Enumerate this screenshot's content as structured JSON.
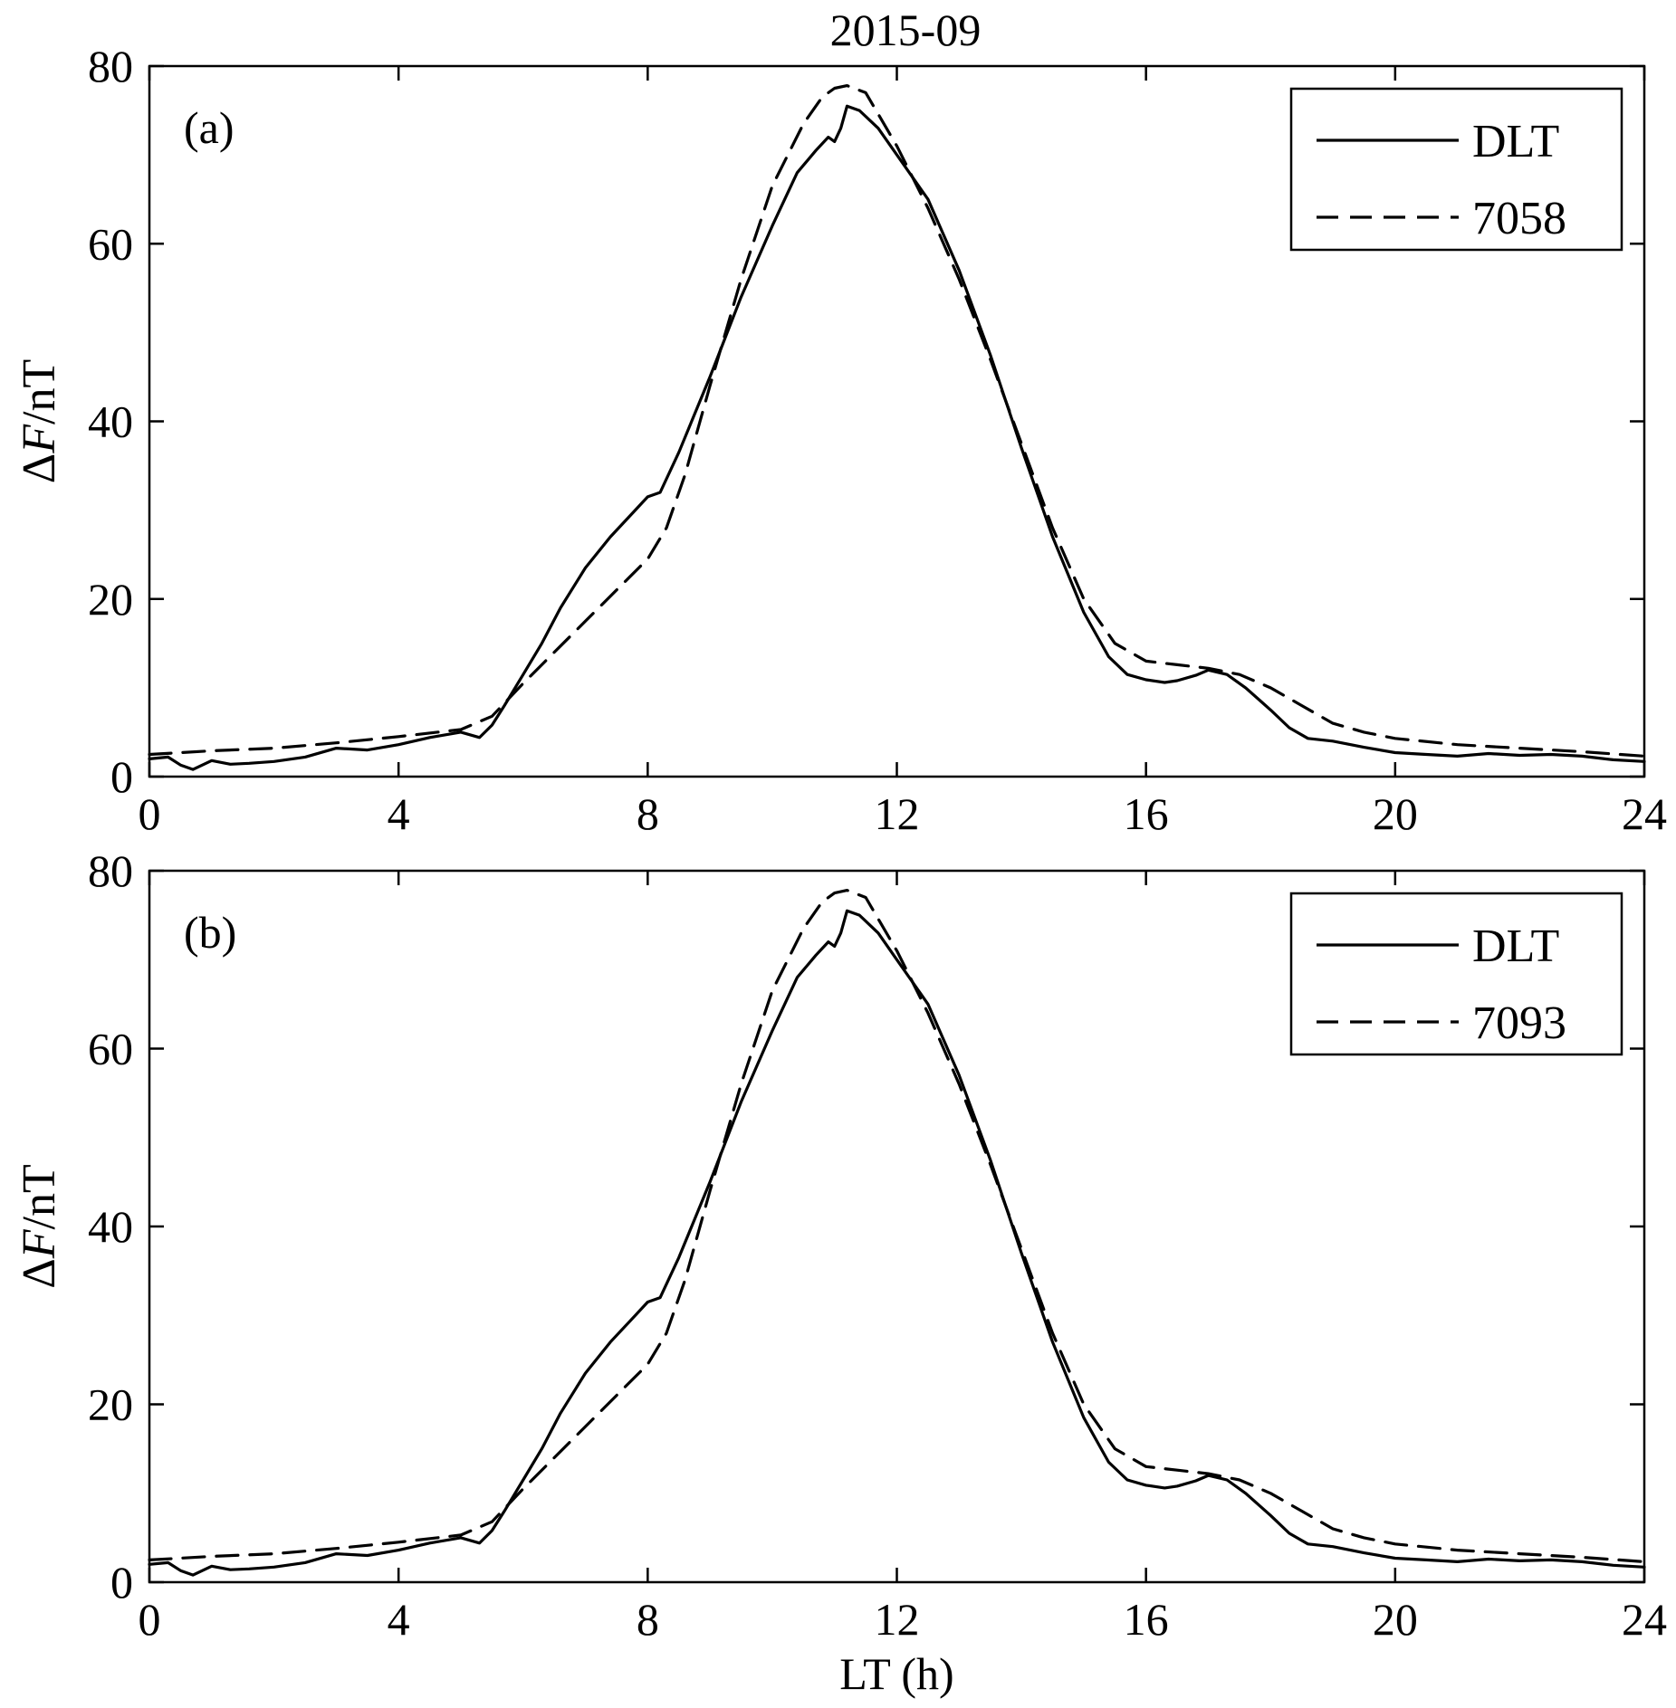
{
  "figure_title": "2015-09",
  "chart_data": [
    {
      "type": "line",
      "panel_label": "(a)",
      "title": "2015-09",
      "xlabel": "",
      "ylabel": "ΔF/nT",
      "ylabel_prefix": "Δ",
      "ylabel_var": "F",
      "ylabel_unit": "/nT",
      "xlim": [
        0,
        24
      ],
      "ylim": [
        0,
        80
      ],
      "xticks": [
        0,
        4,
        8,
        12,
        16,
        20,
        24
      ],
      "yticks": [
        0,
        20,
        40,
        60,
        80
      ],
      "legend_position": "top-right",
      "series": [
        {
          "name": "DLT",
          "style": "solid",
          "x": [
            0,
            0.3,
            0.5,
            0.7,
            1.0,
            1.3,
            1.6,
            2.0,
            2.5,
            3.0,
            3.5,
            4.0,
            4.5,
            5.0,
            5.3,
            5.5,
            5.7,
            6.0,
            6.3,
            6.6,
            7.0,
            7.4,
            7.8,
            8.0,
            8.2,
            8.5,
            9.0,
            9.5,
            10.0,
            10.4,
            10.7,
            10.9,
            11.0,
            11.1,
            11.2,
            11.4,
            11.7,
            12.0,
            12.5,
            13.0,
            13.5,
            14.0,
            14.5,
            15.0,
            15.4,
            15.7,
            16.0,
            16.3,
            16.5,
            16.8,
            17.0,
            17.3,
            17.6,
            18.0,
            18.3,
            18.6,
            19.0,
            19.5,
            20.0,
            20.5,
            21.0,
            21.5,
            22.0,
            22.5,
            23.0,
            23.5,
            24.0
          ],
          "values": [
            2.0,
            2.2,
            1.3,
            0.8,
            1.8,
            1.4,
            1.5,
            1.7,
            2.2,
            3.2,
            3.0,
            3.6,
            4.4,
            5.0,
            4.4,
            5.8,
            8.0,
            11.5,
            15.0,
            19.0,
            23.5,
            27.0,
            30.0,
            31.5,
            32.0,
            36.5,
            45.0,
            54.0,
            62.0,
            68.0,
            70.5,
            72.0,
            71.5,
            73.0,
            75.5,
            75.0,
            73.0,
            70.0,
            65.0,
            57.0,
            47.5,
            37.0,
            27.0,
            18.5,
            13.5,
            11.5,
            10.9,
            10.6,
            10.8,
            11.4,
            12.0,
            11.5,
            10.0,
            7.5,
            5.5,
            4.3,
            4.0,
            3.3,
            2.7,
            2.5,
            2.3,
            2.6,
            2.4,
            2.5,
            2.3,
            1.9,
            1.7
          ]
        },
        {
          "name": "7058",
          "style": "dashed",
          "x": [
            0,
            1,
            2,
            3,
            4,
            5,
            5.5,
            6.0,
            6.5,
            7.0,
            7.5,
            8.0,
            8.3,
            8.6,
            9.0,
            9.5,
            10.0,
            10.5,
            10.8,
            11.0,
            11.2,
            11.5,
            12.0,
            12.5,
            13.0,
            13.5,
            14.0,
            14.5,
            15.0,
            15.5,
            16.0,
            16.5,
            17.0,
            17.5,
            18.0,
            18.5,
            19.0,
            19.5,
            20.0,
            21.0,
            22.0,
            23.0,
            24.0
          ],
          "values": [
            2.5,
            2.9,
            3.2,
            3.8,
            4.5,
            5.3,
            6.8,
            10.5,
            14.0,
            17.5,
            21.0,
            24.5,
            28.0,
            34.0,
            44.0,
            56.0,
            66.5,
            73.5,
            76.5,
            77.5,
            77.8,
            77.0,
            71.0,
            64.0,
            56.0,
            47.0,
            37.5,
            28.0,
            20.0,
            15.0,
            13.0,
            12.6,
            12.2,
            11.5,
            10.0,
            8.0,
            6.0,
            5.0,
            4.3,
            3.6,
            3.2,
            2.8,
            2.3
          ]
        }
      ]
    },
    {
      "type": "line",
      "panel_label": "(b)",
      "title": "",
      "xlabel": "LT (h)",
      "ylabel": "ΔF/nT",
      "ylabel_prefix": "Δ",
      "ylabel_var": "F",
      "ylabel_unit": "/nT",
      "xlim": [
        0,
        24
      ],
      "ylim": [
        0,
        80
      ],
      "xticks": [
        0,
        4,
        8,
        12,
        16,
        20,
        24
      ],
      "yticks": [
        0,
        20,
        40,
        60,
        80
      ],
      "legend_position": "top-right",
      "series": [
        {
          "name": "DLT",
          "style": "solid",
          "x": [
            0,
            0.3,
            0.5,
            0.7,
            1.0,
            1.3,
            1.6,
            2.0,
            2.5,
            3.0,
            3.5,
            4.0,
            4.5,
            5.0,
            5.3,
            5.5,
            5.7,
            6.0,
            6.3,
            6.6,
            7.0,
            7.4,
            7.8,
            8.0,
            8.2,
            8.5,
            9.0,
            9.5,
            10.0,
            10.4,
            10.7,
            10.9,
            11.0,
            11.1,
            11.2,
            11.4,
            11.7,
            12.0,
            12.5,
            13.0,
            13.5,
            14.0,
            14.5,
            15.0,
            15.4,
            15.7,
            16.0,
            16.3,
            16.5,
            16.8,
            17.0,
            17.3,
            17.6,
            18.0,
            18.3,
            18.6,
            19.0,
            19.5,
            20.0,
            20.5,
            21.0,
            21.5,
            22.0,
            22.5,
            23.0,
            23.5,
            24.0
          ],
          "values": [
            2.0,
            2.2,
            1.3,
            0.8,
            1.8,
            1.4,
            1.5,
            1.7,
            2.2,
            3.2,
            3.0,
            3.6,
            4.4,
            5.0,
            4.4,
            5.8,
            8.0,
            11.5,
            15.0,
            19.0,
            23.5,
            27.0,
            30.0,
            31.5,
            32.0,
            36.5,
            45.0,
            54.0,
            62.0,
            68.0,
            70.5,
            72.0,
            71.5,
            73.0,
            75.5,
            75.0,
            73.0,
            70.0,
            65.0,
            57.0,
            47.5,
            37.0,
            27.0,
            18.5,
            13.5,
            11.5,
            10.9,
            10.6,
            10.8,
            11.4,
            12.0,
            11.5,
            10.0,
            7.5,
            5.5,
            4.3,
            4.0,
            3.3,
            2.7,
            2.5,
            2.3,
            2.6,
            2.4,
            2.5,
            2.3,
            1.9,
            1.7
          ]
        },
        {
          "name": "7093",
          "style": "dashed",
          "x": [
            0,
            1,
            2,
            3,
            4,
            5,
            5.5,
            6.0,
            6.5,
            7.0,
            7.5,
            8.0,
            8.3,
            8.6,
            9.0,
            9.5,
            10.0,
            10.5,
            10.8,
            11.0,
            11.2,
            11.5,
            12.0,
            12.5,
            13.0,
            13.5,
            14.0,
            14.5,
            15.0,
            15.5,
            16.0,
            16.5,
            17.0,
            17.5,
            18.0,
            18.5,
            19.0,
            19.5,
            20.0,
            21.0,
            22.0,
            23.0,
            24.0
          ],
          "values": [
            2.5,
            2.9,
            3.2,
            3.8,
            4.5,
            5.3,
            6.8,
            10.5,
            14.0,
            17.5,
            21.0,
            24.5,
            28.0,
            34.0,
            44.0,
            56.0,
            66.5,
            73.5,
            76.5,
            77.5,
            77.8,
            77.0,
            71.0,
            64.0,
            56.0,
            47.0,
            37.5,
            28.0,
            20.0,
            15.0,
            13.0,
            12.6,
            12.2,
            11.5,
            10.0,
            8.0,
            6.0,
            5.0,
            4.3,
            3.6,
            3.2,
            2.8,
            2.3
          ]
        }
      ]
    }
  ]
}
